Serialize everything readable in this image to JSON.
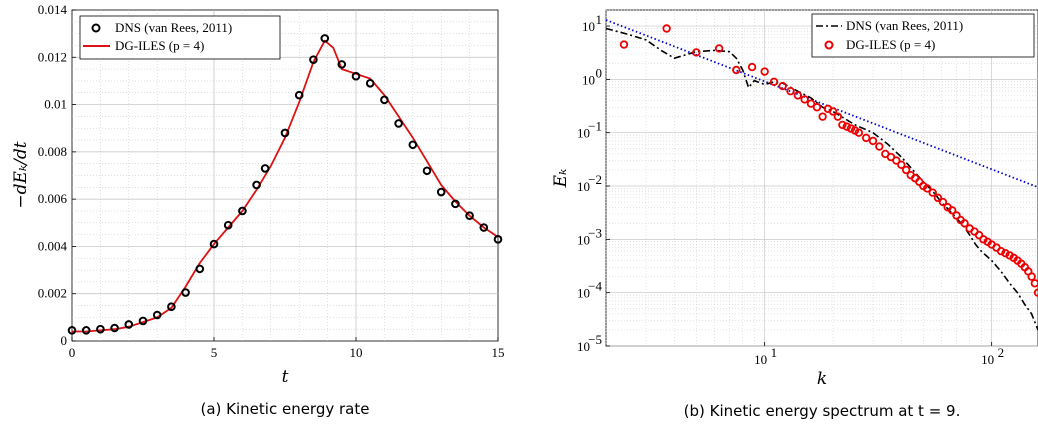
{
  "chart_data": [
    {
      "type": "scatter",
      "caption": "(a) Kinetic energy rate",
      "xlabel": "t",
      "ylabel": "−dEₖ/dt",
      "xlim": [
        0,
        15
      ],
      "ylim": [
        0,
        0.014
      ],
      "xticks": [
        0,
        5,
        10,
        15
      ],
      "yticks": [
        0,
        0.002,
        0.004,
        0.006,
        0.008,
        0.01,
        0.012,
        0.014
      ],
      "ytick_labels": [
        "0",
        "0.002",
        "0.004",
        "0.006",
        "0.008",
        "0.01",
        "0.012",
        "0.014"
      ],
      "grid": true,
      "legend_position": "top-left",
      "series": [
        {
          "name": "DNS (van Rees, 2011)",
          "style": "markers",
          "color": "#000000",
          "x": [
            0,
            0.5,
            1.0,
            1.5,
            2.0,
            2.5,
            3.0,
            3.5,
            4.0,
            4.5,
            5.0,
            5.5,
            6.0,
            6.5,
            6.8,
            7.5,
            8.0,
            8.5,
            8.9,
            9.5,
            10.0,
            10.5,
            11.0,
            11.5,
            12.0,
            12.5,
            13.0,
            13.5,
            14.0,
            14.5,
            15.0
          ],
          "y": [
            0.00045,
            0.00045,
            0.0005,
            0.00055,
            0.0007,
            0.00085,
            0.0011,
            0.00145,
            0.00205,
            0.00305,
            0.0041,
            0.0049,
            0.0055,
            0.0066,
            0.0073,
            0.0088,
            0.0104,
            0.0119,
            0.0128,
            0.0117,
            0.0112,
            0.0109,
            0.0102,
            0.0092,
            0.0083,
            0.0072,
            0.0063,
            0.0058,
            0.0053,
            0.0048,
            0.0043
          ]
        },
        {
          "name": "DG-ILES (p = 4)",
          "style": "line",
          "color": "#dd1111",
          "x": [
            0,
            0.5,
            1.0,
            1.5,
            2.0,
            2.5,
            3.0,
            3.5,
            4.0,
            4.5,
            5.0,
            5.5,
            6.0,
            6.5,
            7.0,
            7.5,
            8.0,
            8.5,
            8.9,
            9.2,
            9.5,
            10.0,
            10.5,
            11.0,
            11.5,
            12.0,
            12.5,
            13.0,
            13.5,
            14.0,
            14.5,
            15.0
          ],
          "y": [
            0.0004,
            0.0004,
            0.00045,
            0.0005,
            0.0006,
            0.0008,
            0.001,
            0.0014,
            0.0023,
            0.0033,
            0.0041,
            0.0048,
            0.0055,
            0.0064,
            0.0074,
            0.0086,
            0.0101,
            0.0118,
            0.0127,
            0.0124,
            0.0115,
            0.0113,
            0.0111,
            0.0104,
            0.0095,
            0.0086,
            0.0076,
            0.0066,
            0.0059,
            0.0053,
            0.0048,
            0.0044
          ]
        }
      ]
    },
    {
      "type": "line",
      "caption": "(b) Kinetic energy spectrum at t = 9.",
      "xlabel": "k",
      "ylabel": "Eₖ",
      "x_scale": "log",
      "y_scale": "log",
      "xlim": [
        2,
        160
      ],
      "ylim": [
        1e-05,
        20
      ],
      "grid": true,
      "legend_position": "top-right",
      "series": [
        {
          "name": "DNS (van Rees, 2011)",
          "style": "dashdot",
          "color": "#000000",
          "x": [
            2,
            2.5,
            3,
            3.5,
            4,
            5,
            6,
            7,
            7.5,
            8,
            8.5,
            9,
            10,
            11,
            12,
            14,
            16,
            18,
            20,
            25,
            30,
            35,
            40,
            45,
            50,
            55,
            60,
            65,
            70,
            75,
            80,
            85,
            90,
            100,
            110,
            120,
            130,
            140,
            150,
            160
          ],
          "y": [
            9,
            7,
            5.5,
            3.5,
            2.5,
            3.3,
            3.5,
            3.3,
            2.5,
            1.5,
            0.7,
            0.95,
            0.8,
            0.9,
            0.85,
            0.6,
            0.45,
            0.3,
            0.25,
            0.14,
            0.1,
            0.06,
            0.035,
            0.02,
            0.012,
            0.008,
            0.005,
            0.0035,
            0.0025,
            0.0018,
            0.0012,
            0.0008,
            0.0006,
            0.0004,
            0.00025,
            0.00015,
            0.0001,
            6e-05,
            4e-05,
            2e-05
          ]
        },
        {
          "name": "DG-ILES (p = 4)",
          "style": "markers",
          "color": "#ee0000",
          "x": [
            2.4,
            3.7,
            5,
            6.3,
            7.5,
            8.8,
            10,
            11,
            12,
            13,
            14,
            15,
            16,
            17,
            18,
            19,
            20,
            21,
            22,
            23,
            24,
            25,
            26,
            28,
            30,
            32,
            34,
            36,
            38,
            40,
            42,
            44,
            46,
            48,
            50,
            52,
            55,
            58,
            61,
            64,
            67,
            70,
            73,
            76,
            80,
            84,
            88,
            92,
            96,
            100,
            105,
            110,
            115,
            120,
            125,
            130,
            135,
            140,
            145,
            150,
            155,
            160
          ],
          "y": [
            4.5,
            9,
            3.2,
            3.8,
            1.5,
            1.7,
            1.4,
            0.9,
            0.75,
            0.6,
            0.5,
            0.42,
            0.35,
            0.3,
            0.2,
            0.28,
            0.25,
            0.2,
            0.14,
            0.13,
            0.12,
            0.11,
            0.1,
            0.08,
            0.07,
            0.055,
            0.04,
            0.035,
            0.03,
            0.025,
            0.02,
            0.016,
            0.014,
            0.012,
            0.01,
            0.009,
            0.0075,
            0.006,
            0.005,
            0.004,
            0.0035,
            0.0028,
            0.0023,
            0.002,
            0.0016,
            0.0014,
            0.0012,
            0.001,
            0.0009,
            0.0008,
            0.0007,
            0.0006,
            0.00055,
            0.0005,
            0.00045,
            0.0004,
            0.00035,
            0.0003,
            0.00025,
            0.0002,
            0.00015,
            0.0001
          ]
        },
        {
          "name": "",
          "style": "dotted",
          "color": "#0000cc",
          "x": [
            2,
            160
          ],
          "y": [
            13,
            0.0095
          ]
        }
      ]
    }
  ]
}
